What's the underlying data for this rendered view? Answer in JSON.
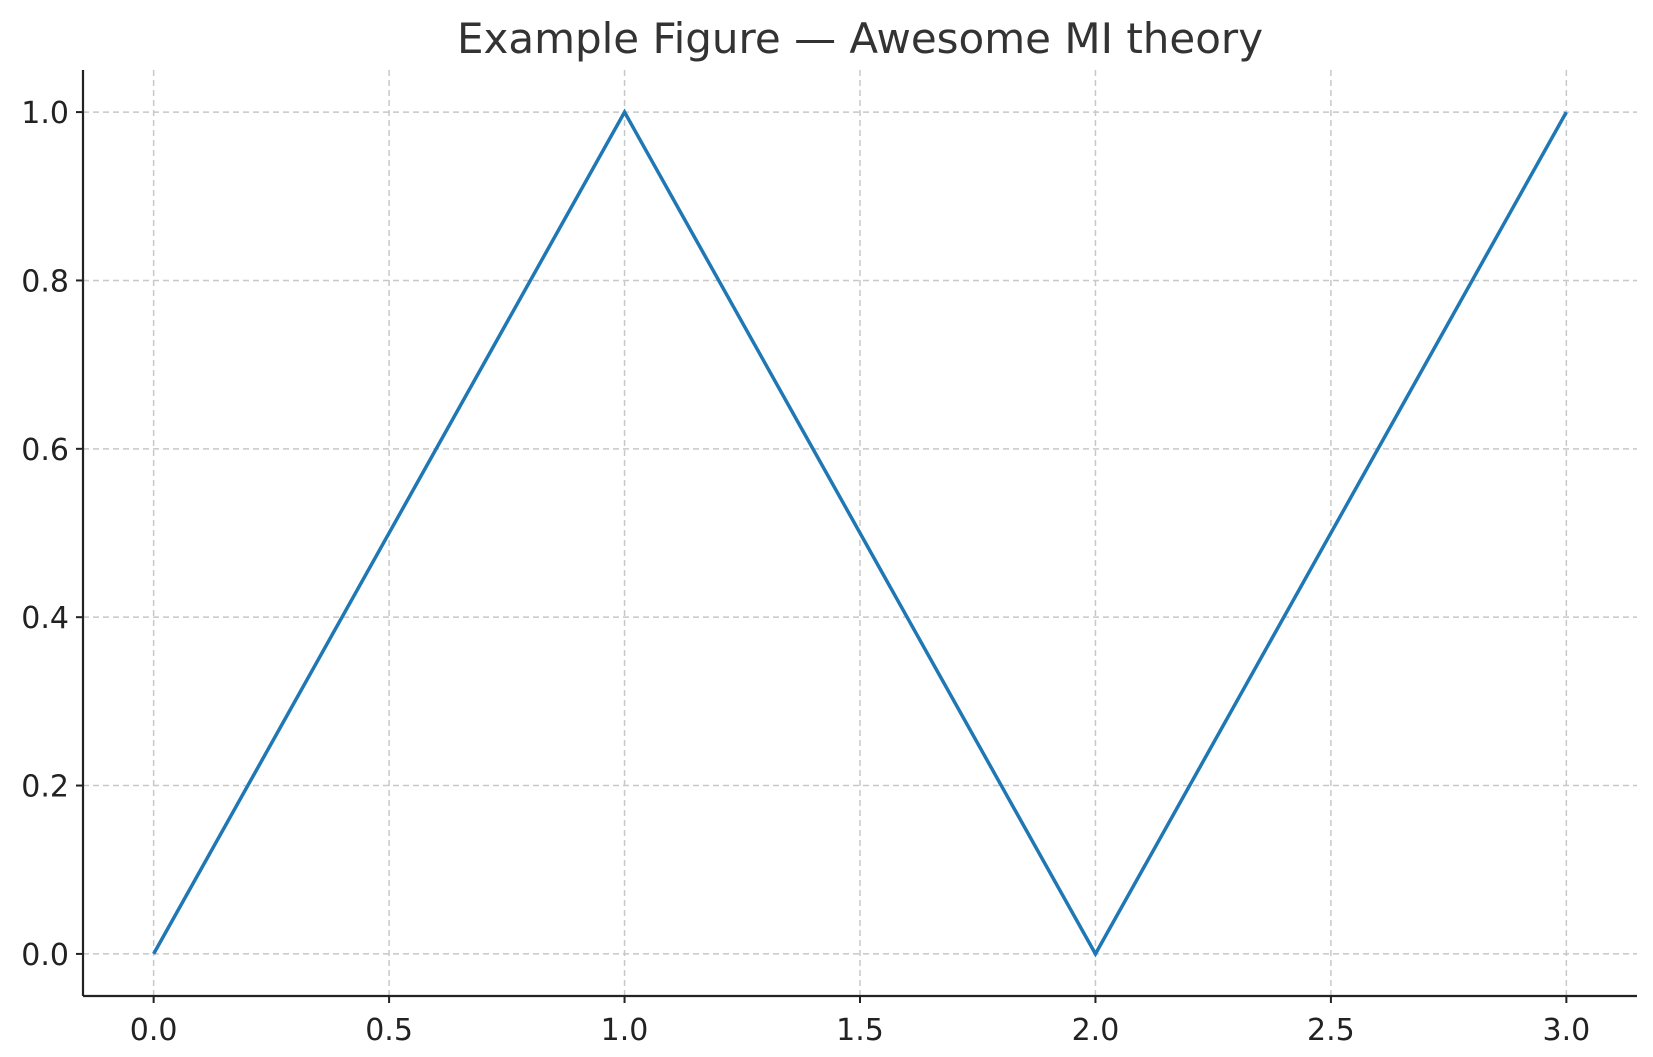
{
  "chart_data": {
    "type": "line",
    "title": "Example Figure — Awesome MI theory",
    "xlabel": "",
    "ylabel": "",
    "xlim": [
      -0.15,
      3.15
    ],
    "ylim": [
      -0.05,
      1.05
    ],
    "x_ticks": [
      "0.0",
      "0.5",
      "1.0",
      "1.5",
      "2.0",
      "2.5",
      "3.0"
    ],
    "y_ticks": [
      "0.0",
      "0.2",
      "0.4",
      "0.6",
      "0.8",
      "1.0"
    ],
    "grid": true,
    "series": [
      {
        "color": "#1f77b4",
        "x": [
          0.0,
          1.0,
          2.0,
          3.0
        ],
        "y": [
          0.0,
          1.0,
          0.0,
          1.0
        ]
      }
    ]
  }
}
